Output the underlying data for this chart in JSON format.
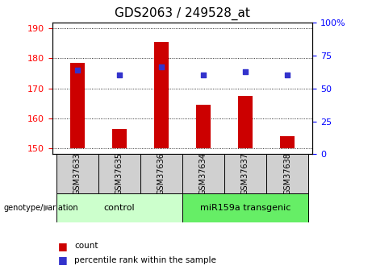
{
  "title": "GDS2063 / 249528_at",
  "categories": [
    "GSM37633",
    "GSM37635",
    "GSM37636",
    "GSM37634",
    "GSM37637",
    "GSM37638"
  ],
  "bar_values": [
    178.5,
    156.5,
    185.5,
    164.5,
    167.5,
    154.0
  ],
  "dot_values": [
    176.0,
    174.5,
    177.0,
    174.5,
    175.5,
    174.5
  ],
  "bar_base": 150,
  "ylim_left": [
    148,
    192
  ],
  "ylim_right": [
    0,
    100
  ],
  "yticks_left": [
    150,
    160,
    170,
    180,
    190
  ],
  "yticks_right": [
    0,
    25,
    50,
    75,
    100
  ],
  "bar_color": "#cc0000",
  "dot_color": "#3333cc",
  "group1_label": "control",
  "group2_label": "miR159a transgenic",
  "group1_indices": [
    0,
    1,
    2
  ],
  "group2_indices": [
    3,
    4,
    5
  ],
  "group1_color": "#ccffcc",
  "group2_color": "#66ee66",
  "xlabel_row_color": "#d0d0d0",
  "legend_count_label": "count",
  "legend_pct_label": "percentile rank within the sample",
  "genotype_label": "genotype/variation",
  "title_fontsize": 11,
  "tick_fontsize": 8,
  "bar_width": 0.35
}
